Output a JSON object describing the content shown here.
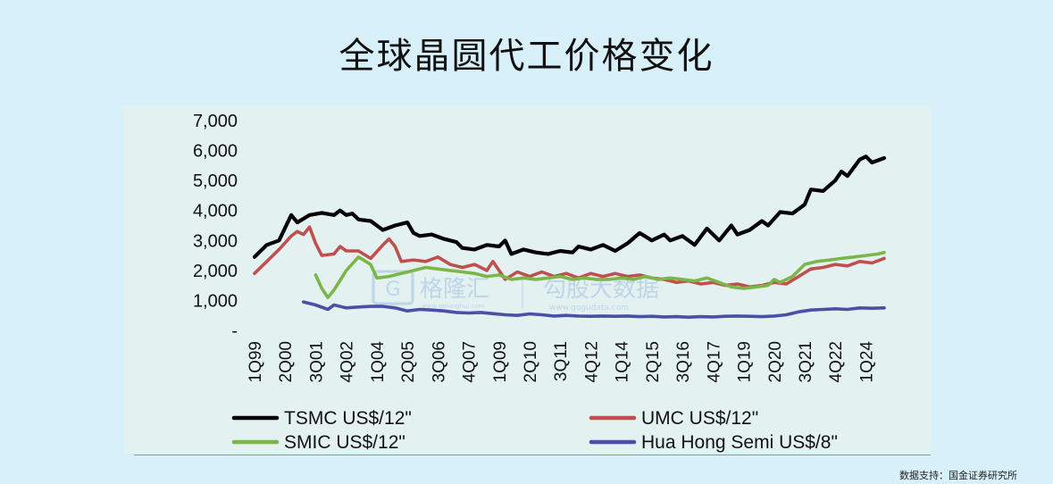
{
  "title": "全球晶圆代工价格变化",
  "source": "数据支持：国金证券研究所",
  "watermark": {
    "left_brand": "格隆汇",
    "left_url": "www.gelonghui.com",
    "right_brand": "勾股大数据",
    "right_url": "www.gogudata.com"
  },
  "colors": {
    "background": "#d8f0fa",
    "panel": "#e4f1f1",
    "tsmc": "#000000",
    "umc": "#c0504d",
    "smic": "#7ab648",
    "huahong": "#4b4fa8"
  },
  "chart_data": {
    "type": "line",
    "title": "全球晶圆代工价格变化",
    "xlabel": "",
    "ylabel": "",
    "ylim": [
      0,
      7000
    ],
    "y_ticks": [
      0,
      1000,
      2000,
      3000,
      4000,
      5000,
      6000,
      7000
    ],
    "y_tick_labels": [
      "-",
      "1,000",
      "2,000",
      "3,000",
      "4,000",
      "5,000",
      "6,000",
      "7,000"
    ],
    "x_start": "1Q99",
    "x_end": "4Q24",
    "x_tick_labels": [
      "1Q99",
      "2Q00",
      "3Q01",
      "4Q02",
      "1Q04",
      "2Q05",
      "3Q06",
      "4Q07",
      "1Q09",
      "2Q10",
      "3Q11",
      "4Q12",
      "1Q14",
      "2Q15",
      "3Q16",
      "4Q17",
      "1Q19",
      "2Q20",
      "3Q21",
      "4Q22",
      "1Q24"
    ],
    "grid": false,
    "legend_position": "bottom",
    "series": [
      {
        "name": "TSMC US$/12\"",
        "color": "#000000",
        "points": [
          [
            "1Q99",
            2450
          ],
          [
            "3Q99",
            2850
          ],
          [
            "1Q00",
            3000
          ],
          [
            "3Q00",
            3850
          ],
          [
            "4Q00",
            3600
          ],
          [
            "2Q01",
            3850
          ],
          [
            "4Q01",
            3920
          ],
          [
            "2Q02",
            3850
          ],
          [
            "3Q02",
            4000
          ],
          [
            "4Q02",
            3850
          ],
          [
            "1Q03",
            3900
          ],
          [
            "2Q03",
            3700
          ],
          [
            "4Q03",
            3650
          ],
          [
            "2Q04",
            3350
          ],
          [
            "4Q04",
            3500
          ],
          [
            "2Q05",
            3600
          ],
          [
            "3Q05",
            3250
          ],
          [
            "4Q05",
            3150
          ],
          [
            "2Q06",
            3200
          ],
          [
            "4Q06",
            3050
          ],
          [
            "2Q07",
            2950
          ],
          [
            "3Q07",
            2750
          ],
          [
            "1Q08",
            2700
          ],
          [
            "3Q08",
            2850
          ],
          [
            "1Q09",
            2800
          ],
          [
            "2Q09",
            3000
          ],
          [
            "3Q09",
            2550
          ],
          [
            "1Q10",
            2700
          ],
          [
            "3Q10",
            2600
          ],
          [
            "1Q11",
            2550
          ],
          [
            "3Q11",
            2650
          ],
          [
            "1Q12",
            2600
          ],
          [
            "2Q12",
            2800
          ],
          [
            "4Q12",
            2700
          ],
          [
            "2Q13",
            2850
          ],
          [
            "4Q13",
            2650
          ],
          [
            "2Q14",
            2900
          ],
          [
            "4Q14",
            3250
          ],
          [
            "2Q15",
            3000
          ],
          [
            "4Q15",
            3200
          ],
          [
            "1Q16",
            3000
          ],
          [
            "3Q16",
            3150
          ],
          [
            "1Q17",
            2850
          ],
          [
            "3Q17",
            3400
          ],
          [
            "1Q18",
            3000
          ],
          [
            "3Q18",
            3500
          ],
          [
            "4Q18",
            3200
          ],
          [
            "2Q19",
            3350
          ],
          [
            "4Q19",
            3650
          ],
          [
            "1Q20",
            3500
          ],
          [
            "3Q20",
            3950
          ],
          [
            "1Q21",
            3900
          ],
          [
            "3Q21",
            4200
          ],
          [
            "4Q21",
            4700
          ],
          [
            "2Q22",
            4650
          ],
          [
            "4Q22",
            5000
          ],
          [
            "1Q23",
            5300
          ],
          [
            "2Q23",
            5150
          ],
          [
            "4Q23",
            5700
          ],
          [
            "1Q24",
            5800
          ],
          [
            "2Q24",
            5600
          ],
          [
            "4Q24",
            5750
          ]
        ]
      },
      {
        "name": "UMC US$/12\"",
        "color": "#c0504d",
        "points": [
          [
            "1Q99",
            1900
          ],
          [
            "3Q99",
            2300
          ],
          [
            "1Q00",
            2700
          ],
          [
            "3Q00",
            3150
          ],
          [
            "4Q00",
            3300
          ],
          [
            "1Q01",
            3200
          ],
          [
            "2Q01",
            3450
          ],
          [
            "3Q01",
            2900
          ],
          [
            "4Q01",
            2500
          ],
          [
            "2Q02",
            2550
          ],
          [
            "3Q02",
            2800
          ],
          [
            "4Q02",
            2650
          ],
          [
            "2Q03",
            2650
          ],
          [
            "4Q03",
            2400
          ],
          [
            "2Q04",
            2850
          ],
          [
            "3Q04",
            3050
          ],
          [
            "4Q04",
            2800
          ],
          [
            "1Q05",
            2300
          ],
          [
            "3Q05",
            2350
          ],
          [
            "1Q06",
            2300
          ],
          [
            "3Q06",
            2450
          ],
          [
            "1Q07",
            2200
          ],
          [
            "3Q07",
            2100
          ],
          [
            "1Q08",
            2200
          ],
          [
            "3Q08",
            2000
          ],
          [
            "4Q08",
            2300
          ],
          [
            "2Q09",
            1700
          ],
          [
            "4Q09",
            1950
          ],
          [
            "2Q10",
            1800
          ],
          [
            "4Q10",
            1950
          ],
          [
            "2Q11",
            1800
          ],
          [
            "4Q11",
            1900
          ],
          [
            "2Q12",
            1750
          ],
          [
            "4Q12",
            1900
          ],
          [
            "2Q13",
            1800
          ],
          [
            "4Q13",
            1900
          ],
          [
            "2Q14",
            1800
          ],
          [
            "4Q14",
            1850
          ],
          [
            "2Q15",
            1750
          ],
          [
            "4Q15",
            1700
          ],
          [
            "2Q16",
            1600
          ],
          [
            "4Q16",
            1650
          ],
          [
            "2Q17",
            1550
          ],
          [
            "4Q17",
            1600
          ],
          [
            "2Q18",
            1500
          ],
          [
            "4Q18",
            1550
          ],
          [
            "2Q19",
            1450
          ],
          [
            "4Q19",
            1500
          ],
          [
            "2Q20",
            1600
          ],
          [
            "4Q20",
            1550
          ],
          [
            "2Q21",
            1800
          ],
          [
            "4Q21",
            2050
          ],
          [
            "2Q22",
            2100
          ],
          [
            "4Q22",
            2200
          ],
          [
            "2Q23",
            2150
          ],
          [
            "4Q23",
            2300
          ],
          [
            "2Q24",
            2250
          ],
          [
            "4Q24",
            2400
          ]
        ]
      },
      {
        "name": "SMIC US$/12\"",
        "color": "#7ab648",
        "points": [
          [
            "3Q01",
            1850
          ],
          [
            "4Q01",
            1400
          ],
          [
            "1Q02",
            1100
          ],
          [
            "2Q02",
            1350
          ],
          [
            "4Q02",
            2000
          ],
          [
            "2Q03",
            2450
          ],
          [
            "4Q03",
            2200
          ],
          [
            "1Q04",
            1750
          ],
          [
            "3Q04",
            1800
          ],
          [
            "1Q05",
            1900
          ],
          [
            "3Q05",
            2000
          ],
          [
            "1Q06",
            2100
          ],
          [
            "3Q06",
            2050
          ],
          [
            "1Q07",
            2000
          ],
          [
            "3Q07",
            1950
          ],
          [
            "1Q08",
            1900
          ],
          [
            "3Q08",
            1800
          ],
          [
            "1Q09",
            1850
          ],
          [
            "3Q09",
            1700
          ],
          [
            "1Q10",
            1750
          ],
          [
            "3Q10",
            1700
          ],
          [
            "1Q11",
            1750
          ],
          [
            "3Q11",
            1800
          ],
          [
            "1Q12",
            1700
          ],
          [
            "3Q12",
            1750
          ],
          [
            "1Q13",
            1700
          ],
          [
            "3Q13",
            1700
          ],
          [
            "1Q14",
            1750
          ],
          [
            "3Q14",
            1700
          ],
          [
            "1Q15",
            1800
          ],
          [
            "3Q15",
            1700
          ],
          [
            "1Q16",
            1750
          ],
          [
            "3Q16",
            1700
          ],
          [
            "1Q17",
            1650
          ],
          [
            "3Q17",
            1750
          ],
          [
            "1Q18",
            1600
          ],
          [
            "3Q18",
            1450
          ],
          [
            "1Q19",
            1400
          ],
          [
            "3Q19",
            1450
          ],
          [
            "1Q20",
            1500
          ],
          [
            "2Q20",
            1700
          ],
          [
            "3Q20",
            1600
          ],
          [
            "1Q21",
            1800
          ],
          [
            "3Q21",
            2200
          ],
          [
            "1Q22",
            2300
          ],
          [
            "3Q22",
            2350
          ],
          [
            "1Q23",
            2400
          ],
          [
            "3Q23",
            2450
          ],
          [
            "1Q24",
            2500
          ],
          [
            "3Q24",
            2550
          ],
          [
            "4Q24",
            2600
          ]
        ]
      },
      {
        "name": "Hua Hong Semi US$/8\"",
        "color": "#4b4fa8",
        "points": [
          [
            "1Q01",
            950
          ],
          [
            "3Q01",
            850
          ],
          [
            "1Q02",
            700
          ],
          [
            "2Q02",
            850
          ],
          [
            "4Q02",
            750
          ],
          [
            "2Q03",
            780
          ],
          [
            "4Q03",
            800
          ],
          [
            "2Q04",
            800
          ],
          [
            "4Q04",
            750
          ],
          [
            "2Q05",
            650
          ],
          [
            "4Q05",
            700
          ],
          [
            "2Q06",
            680
          ],
          [
            "4Q06",
            650
          ],
          [
            "2Q07",
            600
          ],
          [
            "4Q07",
            580
          ],
          [
            "2Q08",
            600
          ],
          [
            "4Q08",
            560
          ],
          [
            "2Q09",
            520
          ],
          [
            "4Q09",
            500
          ],
          [
            "2Q10",
            550
          ],
          [
            "4Q10",
            520
          ],
          [
            "2Q11",
            480
          ],
          [
            "4Q11",
            500
          ],
          [
            "2Q12",
            480
          ],
          [
            "4Q12",
            470
          ],
          [
            "2Q13",
            480
          ],
          [
            "4Q13",
            470
          ],
          [
            "2Q14",
            480
          ],
          [
            "4Q14",
            460
          ],
          [
            "2Q15",
            470
          ],
          [
            "4Q15",
            450
          ],
          [
            "2Q16",
            460
          ],
          [
            "4Q16",
            440
          ],
          [
            "2Q17",
            460
          ],
          [
            "4Q17",
            450
          ],
          [
            "2Q18",
            470
          ],
          [
            "4Q18",
            480
          ],
          [
            "2Q19",
            470
          ],
          [
            "4Q19",
            460
          ],
          [
            "2Q20",
            480
          ],
          [
            "4Q20",
            520
          ],
          [
            "2Q21",
            620
          ],
          [
            "4Q21",
            680
          ],
          [
            "2Q22",
            700
          ],
          [
            "4Q22",
            720
          ],
          [
            "2Q23",
            700
          ],
          [
            "4Q23",
            750
          ],
          [
            "2Q24",
            740
          ],
          [
            "4Q24",
            750
          ]
        ]
      }
    ]
  }
}
